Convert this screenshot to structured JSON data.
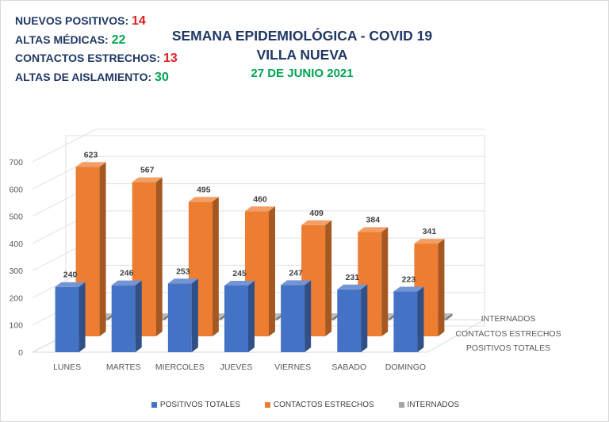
{
  "stats": [
    {
      "label": "NUEVOS POSITIVOS:",
      "value": "14",
      "color": "#e02020"
    },
    {
      "label": "ALTAS MÉDICAS:",
      "value": "22",
      "color": "#00a550"
    },
    {
      "label": "CONTACTOS ESTRECHOS:",
      "value": "13",
      "color": "#e02020"
    },
    {
      "label": "ALTAS DE AISLAMIENTO:",
      "value": "30",
      "color": "#00a550"
    }
  ],
  "header": {
    "title1": "SEMANA EPIDEMIOLÓGICA - COVID 19",
    "title2": "VILLA NUEVA",
    "date": "27 DE JUNIO 2021"
  },
  "chart_data": {
    "type": "bar",
    "categories": [
      "LUNES",
      "MARTES",
      "MIERCOLES",
      "JUEVES",
      "VIERNES",
      "SABADO",
      "DOMINGO"
    ],
    "series": [
      {
        "name": "POSITIVOS TOTALES",
        "values": [
          240,
          246,
          253,
          245,
          247,
          231,
          223
        ],
        "color": "#4472c4"
      },
      {
        "name": "CONTACTOS ESTRECHOS",
        "values": [
          623,
          567,
          495,
          460,
          409,
          384,
          341
        ],
        "color": "#ed7d31"
      },
      {
        "name": "INTERNADOS",
        "values": [
          13,
          11,
          10,
          11,
          9,
          7,
          7
        ],
        "color": "#a5a5a5"
      }
    ],
    "y_ticks": [
      0,
      100,
      200,
      300,
      400,
      500,
      600,
      700
    ],
    "ylim": [
      0,
      700
    ],
    "depth_labels": [
      "INTERNADOS",
      "CONTACTOS ESTRECHOS",
      "POSITIVOS TOTALES"
    ],
    "legend_position": "bottom",
    "view": "3d"
  }
}
